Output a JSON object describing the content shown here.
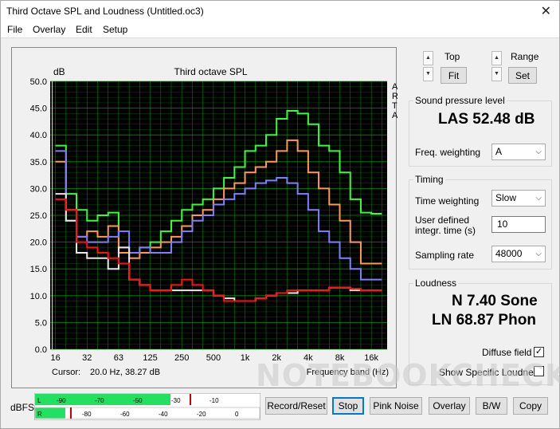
{
  "window": {
    "title": "Third Octave SPL and Loudness (Untitled.oc3)",
    "close_glyph": "✕"
  },
  "menu": {
    "file": "File",
    "overlay": "Overlay",
    "edit": "Edit",
    "setup": "Setup"
  },
  "top_controls": {
    "top_label": "Top",
    "fit_label": "Fit",
    "range_label": "Range",
    "set_label": "Set"
  },
  "spl": {
    "group_title": "Sound pressure level",
    "value": "LAS 52.48 dB",
    "freq_weighting_label": "Freq. weighting",
    "freq_weighting_value": "A"
  },
  "timing": {
    "group_title": "Timing",
    "time_weighting_label": "Time weighting",
    "time_weighting_value": "Slow",
    "user_defined_label_1": "User defined",
    "user_defined_label_2": "integr. time (s)",
    "integration_time_value": "10",
    "sampling_rate_label": "Sampling rate",
    "sampling_rate_value": "48000"
  },
  "loudness": {
    "group_title": "Loudness",
    "sone": "N 7.40 Sone",
    "phon": "LN 68.87 Phon",
    "diffuse_field_label": "Diffuse field",
    "diffuse_field_checked": "✓",
    "specific_label": "Show Specific Loudness"
  },
  "bottom": {
    "dbfs_label": "dBFS",
    "meter_L": "L",
    "meter_R": "R",
    "meter_L_labels": [
      "-90",
      "-70",
      "-50",
      "-30",
      "-10"
    ],
    "meter_R_labels": [
      "-80",
      "-60",
      "-40",
      "-20",
      "0"
    ],
    "buttons": {
      "record": "Record/Reset",
      "stop": "Stop",
      "pink": "Pink Noise",
      "overlay": "Overlay",
      "bw": "B/W",
      "copy": "Copy"
    }
  },
  "watermark": "NOTEBOOKCHECK",
  "colors": {
    "plot_bg": "#000000",
    "grid": "#00a000",
    "green": "#33ff33",
    "orange": "#ff9a50",
    "blue": "#8080ff",
    "red": "#ff1010",
    "white": "#e8e8e8",
    "meter_green": "#22e060"
  },
  "chart_data": {
    "type": "line",
    "title": "Third octave SPL",
    "ylabel": "dB",
    "xlabel": "Frequency band (Hz)",
    "ylim": [
      0,
      50
    ],
    "y_ticks": [
      "50.0",
      "45.0",
      "40.0",
      "35.0",
      "30.0",
      "25.0",
      "20.0",
      "15.0",
      "10.0",
      "5.0",
      "0.0"
    ],
    "x_ticks": [
      "16",
      "32",
      "63",
      "125",
      "250",
      "500",
      "1k",
      "2k",
      "4k",
      "8k",
      "16k"
    ],
    "right_label": [
      "A",
      "R",
      "T",
      "A"
    ],
    "cursor_label": "Cursor:",
    "cursor_value": "20.0 Hz, 38.27 dB",
    "bands": [
      "20",
      "25",
      "31.5",
      "40",
      "50",
      "63",
      "80",
      "100",
      "125",
      "160",
      "200",
      "250",
      "315",
      "400",
      "500",
      "630",
      "800",
      "1k",
      "1.25k",
      "1.6k",
      "2k",
      "2.5k",
      "3.15k",
      "4k",
      "5k",
      "6.3k",
      "8k",
      "10k",
      "12.5k",
      "16k",
      "20k"
    ],
    "series": [
      {
        "color": "green",
        "values": [
          38,
          29,
          26,
          24,
          25,
          25.5,
          19,
          18,
          19,
          20,
          22,
          24,
          26,
          27,
          28,
          30,
          32,
          34,
          37,
          38,
          40,
          43,
          44.5,
          44,
          42,
          38,
          37,
          33,
          28,
          25.5,
          25.3
        ]
      },
      {
        "color": "orange",
        "values": [
          35,
          26,
          21,
          22,
          21,
          23,
          18,
          17,
          18,
          19,
          20,
          21,
          23,
          25,
          26,
          28,
          30,
          31,
          33,
          34,
          35,
          37,
          39,
          37,
          33,
          30,
          27,
          24,
          20,
          16,
          16
        ]
      },
      {
        "color": "blue",
        "values": [
          37,
          24,
          21,
          20,
          20,
          21,
          22,
          18,
          19,
          18,
          18,
          20,
          22,
          24,
          25,
          27,
          28,
          29,
          30,
          31,
          31.5,
          32,
          31,
          29,
          26,
          22,
          20,
          17,
          15,
          13,
          13
        ]
      },
      {
        "color": "white",
        "values": [
          29,
          24,
          18,
          17,
          17,
          15,
          19,
          13,
          12,
          11,
          11,
          11,
          11,
          11,
          11,
          10,
          9.5,
          9,
          9,
          9.5,
          10,
          10.5,
          10.5,
          11,
          11,
          11,
          11.5,
          11.5,
          11,
          11,
          11
        ]
      },
      {
        "color": "red",
        "values": [
          28,
          26,
          20,
          19,
          18,
          17,
          16,
          13,
          12,
          11,
          11,
          12,
          13,
          12,
          11,
          10,
          9,
          9,
          9,
          9.5,
          10,
          10.5,
          11,
          11,
          11,
          11,
          11.5,
          11.5,
          11.3,
          11,
          11
        ]
      }
    ]
  }
}
